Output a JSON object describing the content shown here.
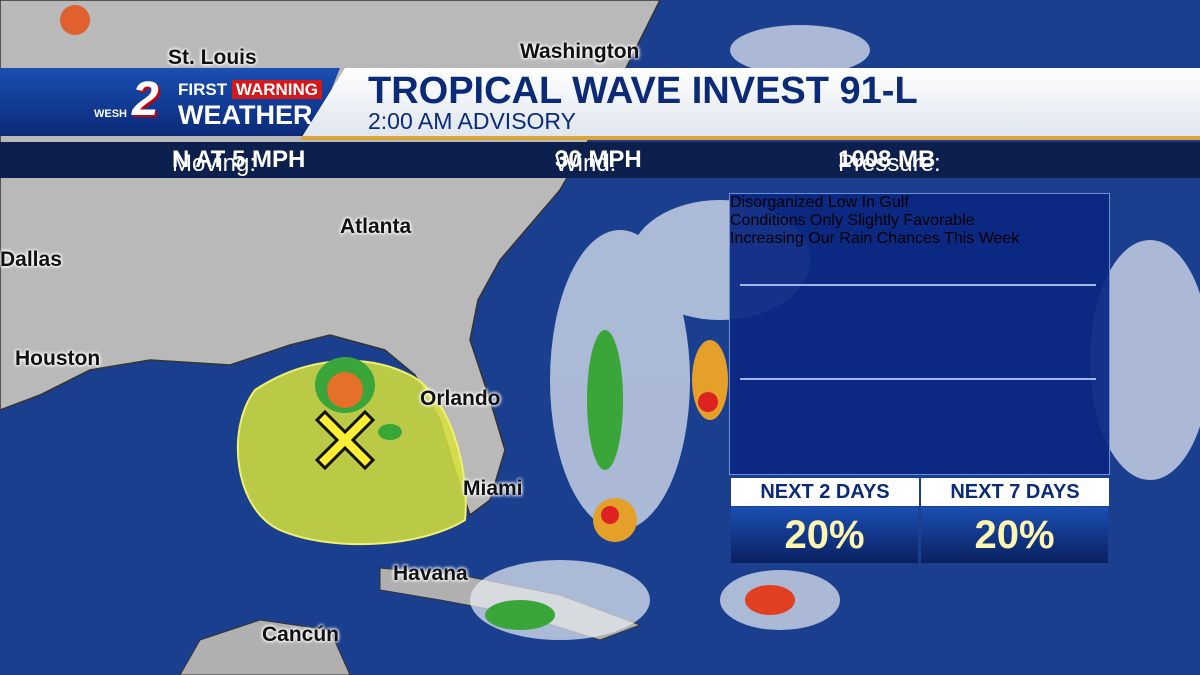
{
  "logo": {
    "station": "WESH",
    "channel": "2",
    "brand_first": "FIRST",
    "brand_warning": "WARNING",
    "brand_bottom": "WEATHER"
  },
  "header": {
    "title": "TROPICAL WAVE INVEST 91-L",
    "subtitle": "2:00 AM ADVISORY"
  },
  "stats": [
    {
      "label": "Moving:",
      "value": "N AT 5 MPH"
    },
    {
      "label": "Wind:",
      "value": "30 MPH"
    },
    {
      "label": "Pressure:",
      "value": "1008 MB"
    }
  ],
  "notes": [
    "Disorganized Low In Gulf",
    "Conditions Only Slightly Favorable",
    "Increasing Our Rain Chances This Week"
  ],
  "outlook": [
    {
      "label": "NEXT 2 DAYS",
      "value": "20%"
    },
    {
      "label": "NEXT 7 DAYS",
      "value": "20%"
    }
  ],
  "map": {
    "cities": [
      "St. Louis",
      "Washington",
      "Atlanta",
      "Dallas",
      "Houston",
      "Orlando",
      "Miami",
      "Havana",
      "Cancún"
    ]
  }
}
